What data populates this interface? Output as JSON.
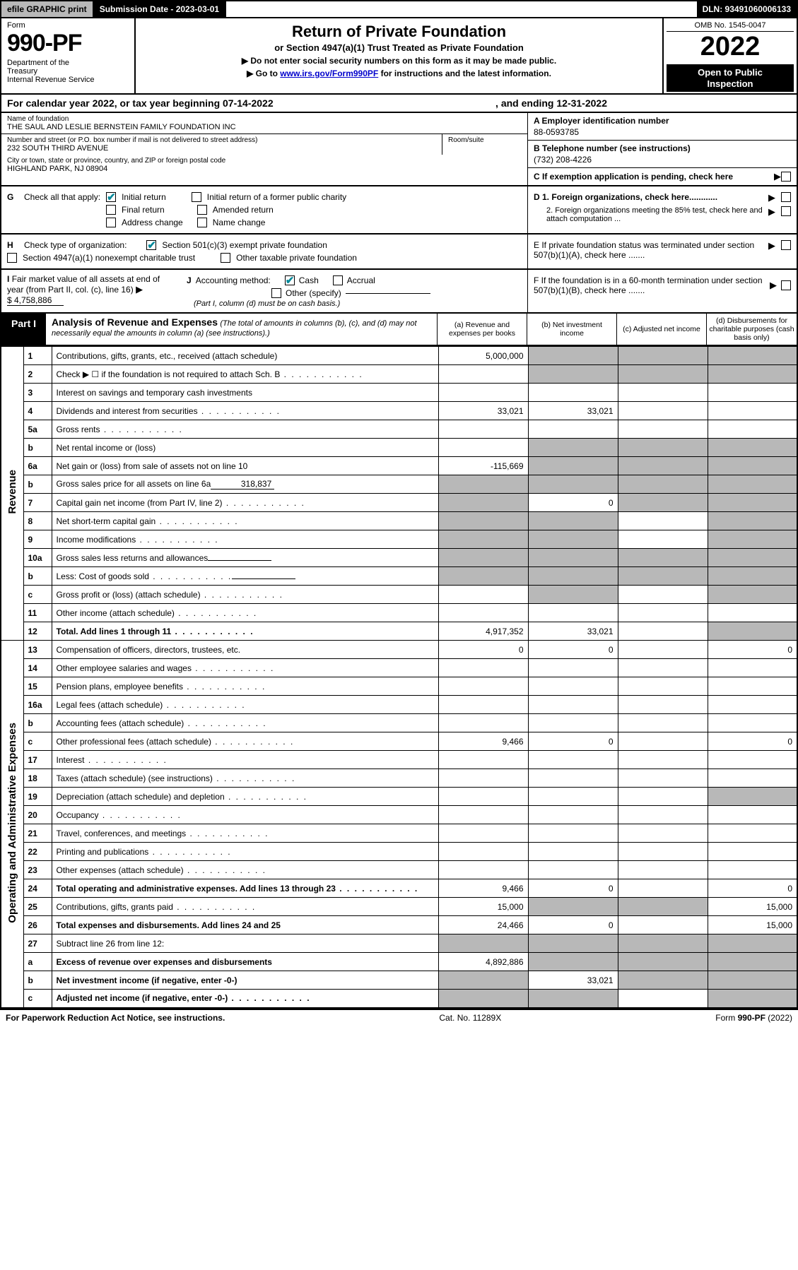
{
  "topbar": {
    "efile": "efile GRAPHIC print",
    "subdate": "Submission Date - 2023-03-01",
    "dln": "DLN: 93491060006133"
  },
  "header": {
    "form_label": "Form",
    "form_number": "990-PF",
    "dept": "Department of the Treasury\nInternal Revenue Service",
    "title": "Return of Private Foundation",
    "subtitle": "or Section 4947(a)(1) Trust Treated as Private Foundation",
    "note1": "▶ Do not enter social security numbers on this form as it may be made public.",
    "note2_pre": "▶ Go to ",
    "note2_link": "www.irs.gov/Form990PF",
    "note2_post": " for instructions and the latest information.",
    "omb": "OMB No. 1545-0047",
    "year": "2022",
    "open": "Open to Public Inspection"
  },
  "calyear": {
    "pre": "For calendar year 2022, or tax year beginning 07-14-2022",
    "end": ", and ending 12-31-2022"
  },
  "entity": {
    "name_label": "Name of foundation",
    "name": "THE SAUL AND LESLIE BERNSTEIN FAMILY FOUNDATION INC",
    "addr_label": "Number and street (or P.O. box number if mail is not delivered to street address)",
    "addr": "232 SOUTH THIRD AVENUE",
    "room_label": "Room/suite",
    "city_label": "City or town, state or province, country, and ZIP or foreign postal code",
    "city": "HIGHLAND PARK, NJ  08904",
    "a_label": "A Employer identification number",
    "a_val": "88-0593785",
    "b_label": "B Telephone number (see instructions)",
    "b_val": "(732) 208-4226",
    "c_label": "C If exemption application is pending, check here"
  },
  "g": {
    "lead": "G",
    "label": "Check all that apply:",
    "items": [
      {
        "text": "Initial return",
        "checked": true
      },
      {
        "text": "Initial return of a former public charity",
        "checked": false
      },
      {
        "text": "Final return",
        "checked": false
      },
      {
        "text": "Amended return",
        "checked": false
      },
      {
        "text": "Address change",
        "checked": false
      },
      {
        "text": "Name change",
        "checked": false
      }
    ]
  },
  "d": {
    "d1": "D 1. Foreign organizations, check here............",
    "d2": "2. Foreign organizations meeting the 85% test, check here and attach computation ..."
  },
  "h": {
    "lead": "H",
    "label": "Check type of organization:",
    "opt1": {
      "text": "Section 501(c)(3) exempt private foundation",
      "checked": true
    },
    "opt2": {
      "text": "Section 4947(a)(1) nonexempt charitable trust",
      "checked": false
    },
    "opt3": {
      "text": "Other taxable private foundation",
      "checked": false
    }
  },
  "e": "E   If private foundation status was terminated under section 507(b)(1)(A), check here .......",
  "i": {
    "lead": "I",
    "text": "Fair market value of all assets at end of year (from Part II, col. (c), line 16)",
    "amount": "$  4,758,886"
  },
  "j": {
    "lead": "J",
    "label": "Accounting method:",
    "cash": {
      "text": "Cash",
      "checked": true
    },
    "accrual": {
      "text": "Accrual",
      "checked": false
    },
    "other": {
      "text": "Other (specify)",
      "checked": false
    },
    "note": "(Part I, column (d) must be on cash basis.)"
  },
  "f": "F   If the foundation is in a 60-month termination under section 507(b)(1)(B), check here .......",
  "part1": {
    "tag": "Part I",
    "title": "Analysis of Revenue and Expenses",
    "title_note": "(The total of amounts in columns (b), (c), and (d) may not necessarily equal the amounts in column (a) (see instructions).)",
    "col_a": "(a)   Revenue and expenses per books",
    "col_b": "(b)   Net investment income",
    "col_c": "(c)   Adjusted net income",
    "col_d": "(d)   Disbursements for charitable purposes (cash basis only)"
  },
  "sidelabels": {
    "revenue": "Revenue",
    "opex": "Operating and Administrative Expenses"
  },
  "rows": [
    {
      "n": "1",
      "label": "Contributions, gifts, grants, etc., received (attach schedule)",
      "a": "5,000,000",
      "b_s": 1,
      "c_s": 1,
      "d_s": 1
    },
    {
      "n": "2",
      "label": "Check ▶ ☐ if the foundation is not required to attach Sch. B",
      "dots": 1,
      "no_abcd": 1,
      "b_s": 1,
      "c_s": 1,
      "d_s": 1
    },
    {
      "n": "3",
      "label": "Interest on savings and temporary cash investments"
    },
    {
      "n": "4",
      "label": "Dividends and interest from securities",
      "dots": 1,
      "a": "33,021",
      "b": "33,021"
    },
    {
      "n": "5a",
      "label": "Gross rents",
      "dots": 1
    },
    {
      "n": "b",
      "label": "Net rental income or (loss)",
      "b_s": 1,
      "c_s": 1,
      "d_s": 1
    },
    {
      "n": "6a",
      "label": "Net gain or (loss) from sale of assets not on line 10",
      "a": "-115,669",
      "b_s": 1,
      "c_s": 1,
      "d_s": 1
    },
    {
      "n": "b",
      "label": "Gross sales price for all assets on line 6a",
      "inline": "318,837",
      "b_s": 1,
      "c_s": 1,
      "d_s": 1,
      "a_s": 1
    },
    {
      "n": "7",
      "label": "Capital gain net income (from Part IV, line 2)",
      "dots": 1,
      "a_s": 1,
      "b": "0",
      "c_s": 1,
      "d_s": 1
    },
    {
      "n": "8",
      "label": "Net short-term capital gain",
      "dots": 1,
      "a_s": 1,
      "b_s": 1,
      "d_s": 1
    },
    {
      "n": "9",
      "label": "Income modifications",
      "dots": 1,
      "a_s": 1,
      "b_s": 1,
      "d_s": 1
    },
    {
      "n": "10a",
      "label": "Gross sales less returns and allowances",
      "inline": "",
      "a_s": 1,
      "b_s": 1,
      "c_s": 1,
      "d_s": 1
    },
    {
      "n": "b",
      "label": "Less: Cost of goods sold",
      "dots": 1,
      "inline": "",
      "a_s": 1,
      "b_s": 1,
      "c_s": 1,
      "d_s": 1
    },
    {
      "n": "c",
      "label": "Gross profit or (loss) (attach schedule)",
      "dots": 1,
      "a_s": 0,
      "b_s": 1,
      "d_s": 1
    },
    {
      "n": "11",
      "label": "Other income (attach schedule)",
      "dots": 1
    },
    {
      "n": "12",
      "label": "Total. Add lines 1 through 11",
      "dots": 1,
      "bold": 1,
      "a": "4,917,352",
      "b": "33,021",
      "d_s": 1
    },
    {
      "n": "13",
      "label": "Compensation of officers, directors, trustees, etc.",
      "a": "0",
      "b": "0",
      "d": "0"
    },
    {
      "n": "14",
      "label": "Other employee salaries and wages",
      "dots": 1
    },
    {
      "n": "15",
      "label": "Pension plans, employee benefits",
      "dots": 1
    },
    {
      "n": "16a",
      "label": "Legal fees (attach schedule)",
      "dots": 1
    },
    {
      "n": "b",
      "label": "Accounting fees (attach schedule)",
      "dots": 1
    },
    {
      "n": "c",
      "label": "Other professional fees (attach schedule)",
      "dots": 1,
      "a": "9,466",
      "b": "0",
      "d": "0"
    },
    {
      "n": "17",
      "label": "Interest",
      "dots": 1
    },
    {
      "n": "18",
      "label": "Taxes (attach schedule) (see instructions)",
      "dots": 1
    },
    {
      "n": "19",
      "label": "Depreciation (attach schedule) and depletion",
      "dots": 1,
      "d_s": 1
    },
    {
      "n": "20",
      "label": "Occupancy",
      "dots": 1
    },
    {
      "n": "21",
      "label": "Travel, conferences, and meetings",
      "dots": 1
    },
    {
      "n": "22",
      "label": "Printing and publications",
      "dots": 1
    },
    {
      "n": "23",
      "label": "Other expenses (attach schedule)",
      "dots": 1
    },
    {
      "n": "24",
      "label": "Total operating and administrative expenses. Add lines 13 through 23",
      "dots": 1,
      "bold": 1,
      "a": "9,466",
      "b": "0",
      "d": "0"
    },
    {
      "n": "25",
      "label": "Contributions, gifts, grants paid",
      "dots": 1,
      "a": "15,000",
      "b_s": 1,
      "c_s": 1,
      "d": "15,000"
    },
    {
      "n": "26",
      "label": "Total expenses and disbursements. Add lines 24 and 25",
      "bold": 1,
      "a": "24,466",
      "b": "0",
      "d": "15,000"
    },
    {
      "n": "27",
      "label": "Subtract line 26 from line 12:",
      "a_s": 1,
      "b_s": 1,
      "c_s": 1,
      "d_s": 1
    },
    {
      "n": "a",
      "label": "Excess of revenue over expenses and disbursements",
      "bold": 1,
      "a": "4,892,886",
      "b_s": 1,
      "c_s": 1,
      "d_s": 1
    },
    {
      "n": "b",
      "label": "Net investment income (if negative, enter -0-)",
      "bold": 1,
      "a_s": 1,
      "b": "33,021",
      "c_s": 1,
      "d_s": 1
    },
    {
      "n": "c",
      "label": "Adjusted net income (if negative, enter -0-)",
      "dots": 1,
      "bold": 1,
      "a_s": 1,
      "b_s": 1,
      "d_s": 1
    }
  ],
  "footer": {
    "left": "For Paperwork Reduction Act Notice, see instructions.",
    "mid": "Cat. No. 11289X",
    "right": "Form 990-PF (2022)"
  },
  "colors": {
    "shade": "#b8b8b8",
    "link": "#0000cc",
    "check": "#089"
  }
}
